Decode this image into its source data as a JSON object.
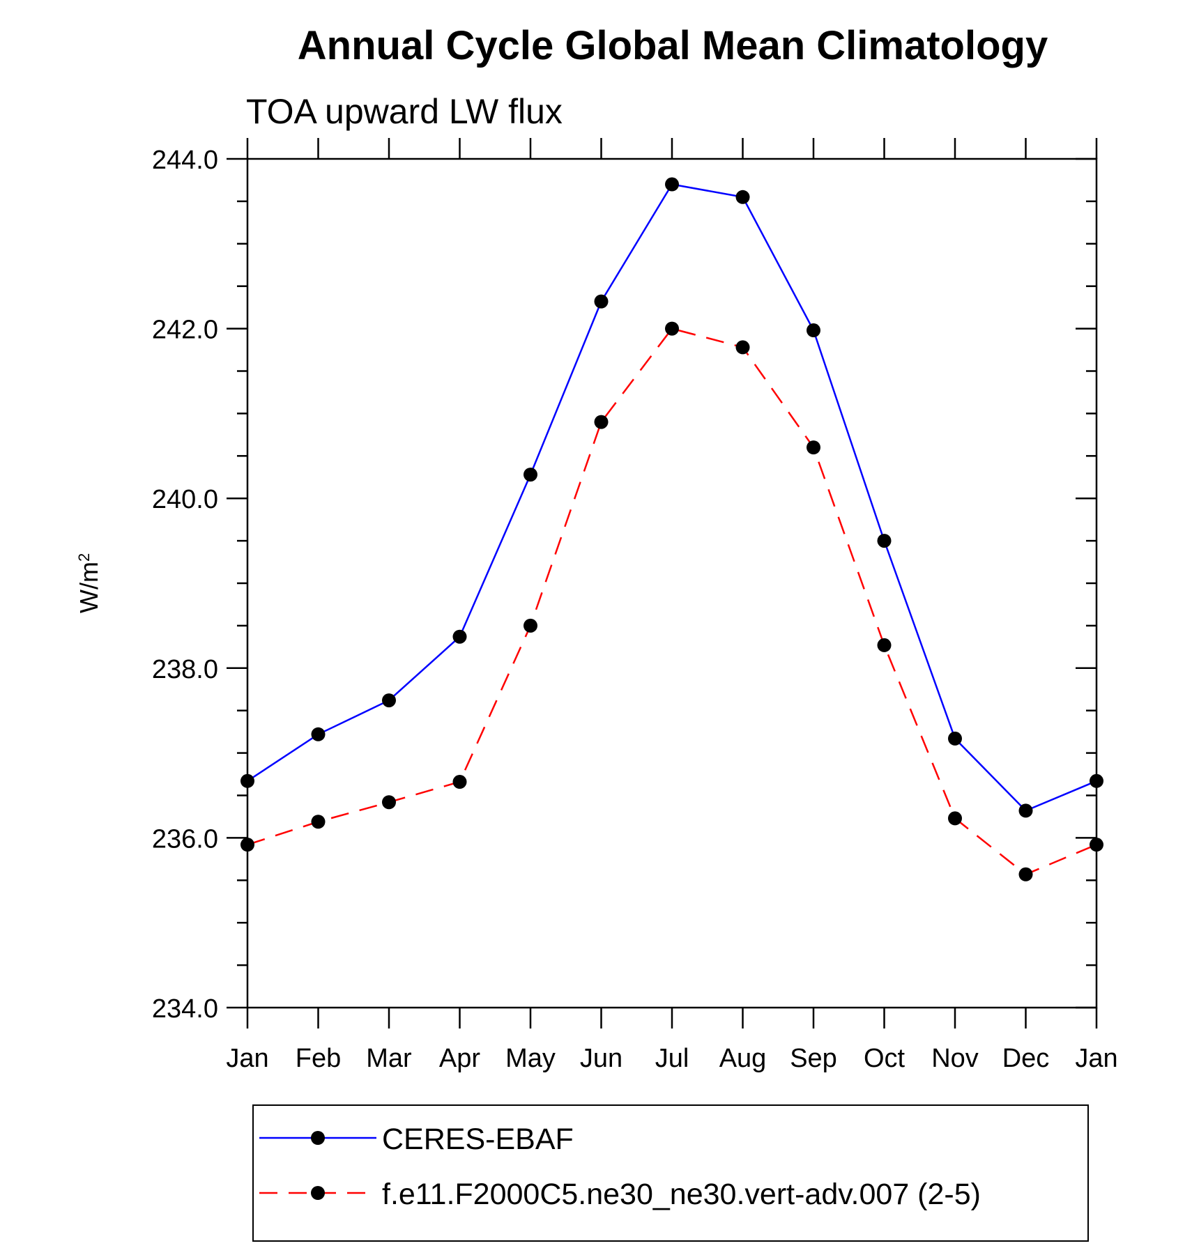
{
  "chart_data": {
    "type": "line",
    "title": "Annual Cycle Global Mean Climatology",
    "subtitle": "TOA upward LW flux",
    "ylabel": "W/m",
    "ylabel_sup": "2",
    "xlabel": "",
    "categories": [
      "Jan",
      "Feb",
      "Mar",
      "Apr",
      "May",
      "Jun",
      "Jul",
      "Aug",
      "Sep",
      "Oct",
      "Nov",
      "Dec",
      "Jan"
    ],
    "ylim": [
      234.0,
      244.0
    ],
    "yticks": [
      "234.0",
      "236.0",
      "238.0",
      "240.0",
      "242.0",
      "244.0"
    ],
    "grid": false,
    "legend_position": "bottom",
    "series": [
      {
        "name": "CERES-EBAF",
        "color": "#0000ff",
        "dash": "solid",
        "marker": "filled-circle",
        "values": [
          236.67,
          237.22,
          237.62,
          238.37,
          240.28,
          242.32,
          243.7,
          243.55,
          241.98,
          239.5,
          237.17,
          236.32,
          236.67
        ]
      },
      {
        "name": "f.e11.F2000C5.ne30_ne30.vert-adv.007 (2-5)",
        "color": "#ff0000",
        "dash": "dashed",
        "marker": "filled-circle",
        "values": [
          235.92,
          236.19,
          236.42,
          236.66,
          238.5,
          240.9,
          242.0,
          241.78,
          240.6,
          238.27,
          236.23,
          235.57,
          235.92
        ]
      }
    ]
  }
}
